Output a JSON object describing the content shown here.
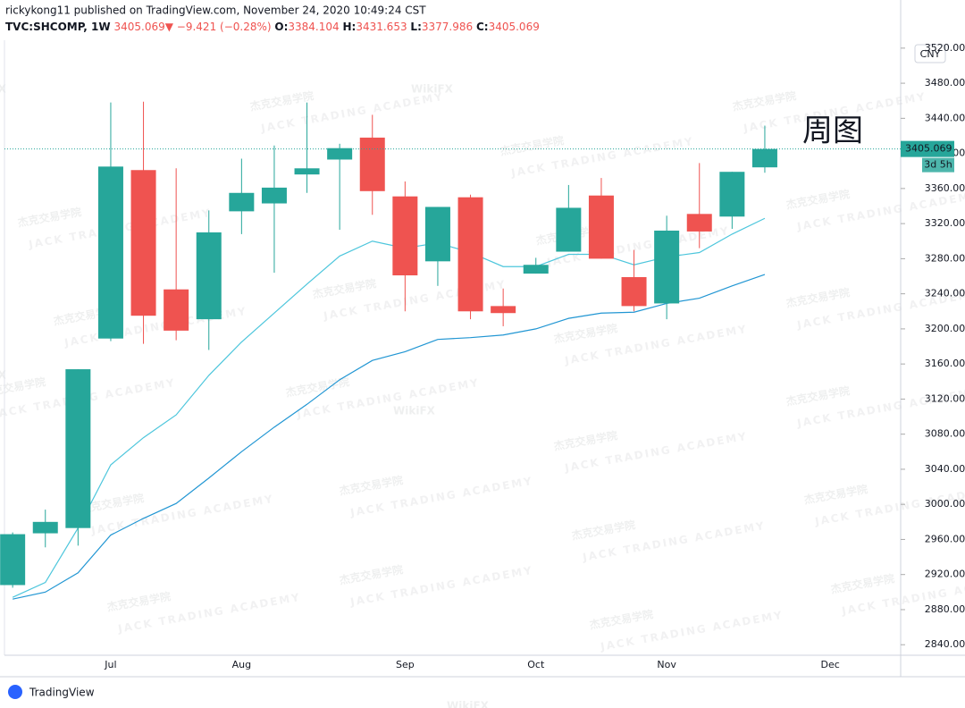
{
  "header": {
    "publisher": "rickykong11 published on TradingView.com, November 24, 2020 10:49:24 CST",
    "symbol": "TVC:SHCOMP, 1W",
    "arrow": "▼",
    "change": "−9.421 (−0.28%)",
    "o": "O:",
    "h": "H:",
    "l": "L:",
    "c": "C:"
  },
  "currency": "CNY",
  "countdown": "3d 5h",
  "annotation": "周图",
  "brand": "TradingView",
  "watermarks": {
    "logo": "WikiFX",
    "cn": "杰克交易学院",
    "en": "JACK TRADING ACADEMY"
  },
  "chart_data": {
    "type": "candlestick",
    "categories": [
      null,
      null,
      null,
      "Jul",
      null,
      null,
      null,
      "Aug",
      null,
      null,
      null,
      null,
      "Sep",
      null,
      null,
      null,
      "Oct",
      null,
      null,
      null,
      "Nov",
      null,
      null,
      null,
      null,
      "Dec",
      null,
      null
    ],
    "open": [
      2908,
      2967,
      2973,
      3189,
      3381,
      3245,
      3211,
      3334,
      3343,
      3376,
      3393,
      3418,
      3351,
      3277,
      3350,
      3226,
      3263,
      3288,
      3352,
      3259,
      3229,
      3331,
      3328,
      3384.104,
      null,
      null,
      null,
      null
    ],
    "high": [
      2968,
      2994,
      3154,
      3458,
      3459,
      3383,
      3335,
      3394,
      3409,
      3458,
      3411,
      3444,
      3368,
      3339,
      3353,
      3246,
      3281,
      3364,
      3372,
      3290,
      3329,
      3389,
      3379,
      3431.653,
      null,
      null,
      null,
      null
    ],
    "low": [
      2905,
      2951,
      2953,
      3186,
      3183,
      3187,
      3176,
      3308,
      3264,
      3355,
      3313,
      3330,
      3220,
      3249,
      3211,
      3203,
      3263,
      3288,
      3280,
      3220,
      3211,
      3292,
      3314,
      3377.986,
      null,
      null,
      null,
      null
    ],
    "close": [
      2966,
      2980,
      3154,
      3385,
      3215,
      3198,
      3310,
      3355,
      3361,
      3383,
      3406,
      3357,
      3261,
      3339,
      3220,
      3218,
      3273,
      3338,
      3280,
      3226,
      3312,
      3311,
      3379,
      3405.069,
      null,
      null,
      null,
      null
    ],
    "lines": [
      {
        "color": "#4dc6dc",
        "values": [
          2894,
          2911,
          2973,
          3045,
          3076,
          3102,
          3147,
          3185,
          3218,
          3251,
          3283,
          3300,
          3292,
          3298,
          3287,
          3271,
          3271,
          3285,
          3285,
          3273,
          3282,
          3287,
          3308,
          3326,
          null,
          null,
          null,
          null
        ]
      },
      {
        "color": "#2196d3",
        "values": [
          2892,
          2900,
          2922,
          2965,
          2984,
          3001,
          3030,
          3060,
          3088,
          3114,
          3142,
          3164,
          3174,
          3188,
          3190,
          3193,
          3200,
          3212,
          3218,
          3219,
          3229,
          3235,
          3249,
          3262,
          null,
          null,
          null,
          null
        ]
      }
    ],
    "up_color": "#26a69a",
    "down_color": "#ef5350",
    "ylim": [
      2828,
      3529
    ],
    "yticks": [
      {
        "value": 2840,
        "label": "2840.000"
      },
      {
        "value": 2880,
        "label": "2880.000"
      },
      {
        "value": 2920,
        "label": "2920.000"
      },
      {
        "value": 2960,
        "label": "2960.000"
      },
      {
        "value": 3000,
        "label": "3000.000"
      },
      {
        "value": 3040,
        "label": "3040.000"
      },
      {
        "value": 3080,
        "label": "3080.000"
      },
      {
        "value": 3120,
        "label": "3120.000"
      },
      {
        "value": 3160,
        "label": "3160.000"
      },
      {
        "value": 3200,
        "label": "3200.000"
      },
      {
        "value": 3240,
        "label": "3240.000"
      },
      {
        "value": 3280,
        "label": "3280.000"
      },
      {
        "value": 3320,
        "label": "3320.000"
      },
      {
        "value": 3360,
        "label": "3360.000"
      },
      {
        "value": 3400,
        "label": "3400.000"
      },
      {
        "value": 3440,
        "label": "3440.000"
      },
      {
        "value": 3480,
        "label": "3480.000"
      },
      {
        "value": 3520,
        "label": "3520.000"
      }
    ]
  }
}
